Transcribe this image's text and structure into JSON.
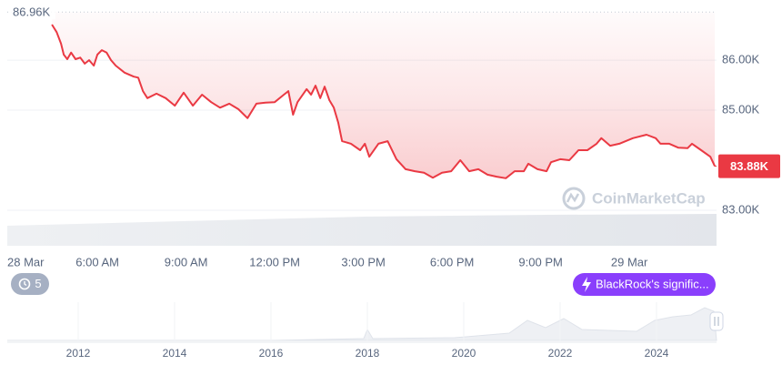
{
  "chart_data": {
    "type": "line",
    "color": "#ea3943",
    "x": [
      4.46,
      4.62,
      4.77,
      4.86,
      4.98,
      5.11,
      5.26,
      5.42,
      5.57,
      5.72,
      5.88,
      6.0,
      6.15,
      6.31,
      6.46,
      6.62,
      6.92,
      7.23,
      7.38,
      7.54,
      7.69,
      8.0,
      8.31,
      8.62,
      8.92,
      9.23,
      9.54,
      9.85,
      10.15,
      10.46,
      10.77,
      11.08,
      11.38,
      11.69,
      12.0,
      12.31,
      12.46,
      12.62,
      12.77,
      13.08,
      13.23,
      13.38,
      13.54,
      13.69,
      13.85,
      14.0,
      14.15,
      14.28,
      14.58,
      14.89,
      15.05,
      15.2,
      15.51,
      15.82,
      16.12,
      16.43,
      16.74,
      17.05,
      17.35,
      17.66,
      17.97,
      18.28,
      18.58,
      18.89,
      19.2,
      19.51,
      19.82,
      20.12,
      20.43,
      20.58,
      20.89,
      21.2,
      21.35,
      21.66,
      21.97,
      22.28,
      22.58,
      22.89,
      23.05,
      23.35,
      23.66,
      24.12,
      24.58,
      24.89,
      25.05,
      25.35,
      25.66,
      25.97,
      26.12,
      26.43,
      26.74,
      26.89
    ],
    "values": [
      86710,
      86560,
      86330,
      86110,
      86020,
      86150,
      86020,
      86050,
      85930,
      86000,
      85890,
      86110,
      86200,
      86150,
      86000,
      85890,
      85750,
      85670,
      85650,
      85380,
      85240,
      85330,
      85240,
      85090,
      85350,
      85090,
      85310,
      85160,
      85050,
      85130,
      85020,
      84840,
      85130,
      85150,
      85160,
      85310,
      85380,
      84910,
      85160,
      85420,
      85310,
      85490,
      85240,
      85470,
      85200,
      85050,
      84750,
      84380,
      84330,
      84200,
      84330,
      84070,
      84330,
      84380,
      84020,
      83820,
      83780,
      83750,
      83650,
      83750,
      83780,
      84000,
      83780,
      83820,
      83710,
      83670,
      83640,
      83780,
      83780,
      83930,
      83820,
      83780,
      83960,
      84020,
      84000,
      84200,
      84200,
      84330,
      84440,
      84290,
      84330,
      84440,
      84510,
      84440,
      84330,
      84330,
      84250,
      84240,
      84330,
      84200,
      84070,
      83880
    ],
    "xlim": [
      2.95,
      26.95
    ],
    "xticks": [
      {
        "value": 2.95,
        "label": "28 Mar"
      },
      {
        "value": 6,
        "label": "6:00 AM"
      },
      {
        "value": 9,
        "label": "9:00 AM"
      },
      {
        "value": 12,
        "label": "12:00 PM"
      },
      {
        "value": 15,
        "label": "3:00 PM"
      },
      {
        "value": 18,
        "label": "6:00 PM"
      },
      {
        "value": 21,
        "label": "9:00 PM"
      },
      {
        "value": 24,
        "label": "29 Mar"
      }
    ],
    "ylim": [
      82290,
      87020
    ],
    "yticks": [
      {
        "value": 83000,
        "label": "83.00K"
      },
      {
        "value": 85000,
        "label": "85.00K"
      },
      {
        "value": 86000,
        "label": "86.00K"
      }
    ],
    "grid": true,
    "reference": {
      "value": 86960,
      "label": "86.96K"
    },
    "last": {
      "value": 83880,
      "label": "83.88K"
    },
    "watermark": "CoinMarketCap"
  },
  "events": {
    "count": "5",
    "news": "BlackRock's signific..."
  },
  "navigator": {
    "years": [
      "2012",
      "2014",
      "2016",
      "2018",
      "2020",
      "2022",
      "2024"
    ]
  }
}
